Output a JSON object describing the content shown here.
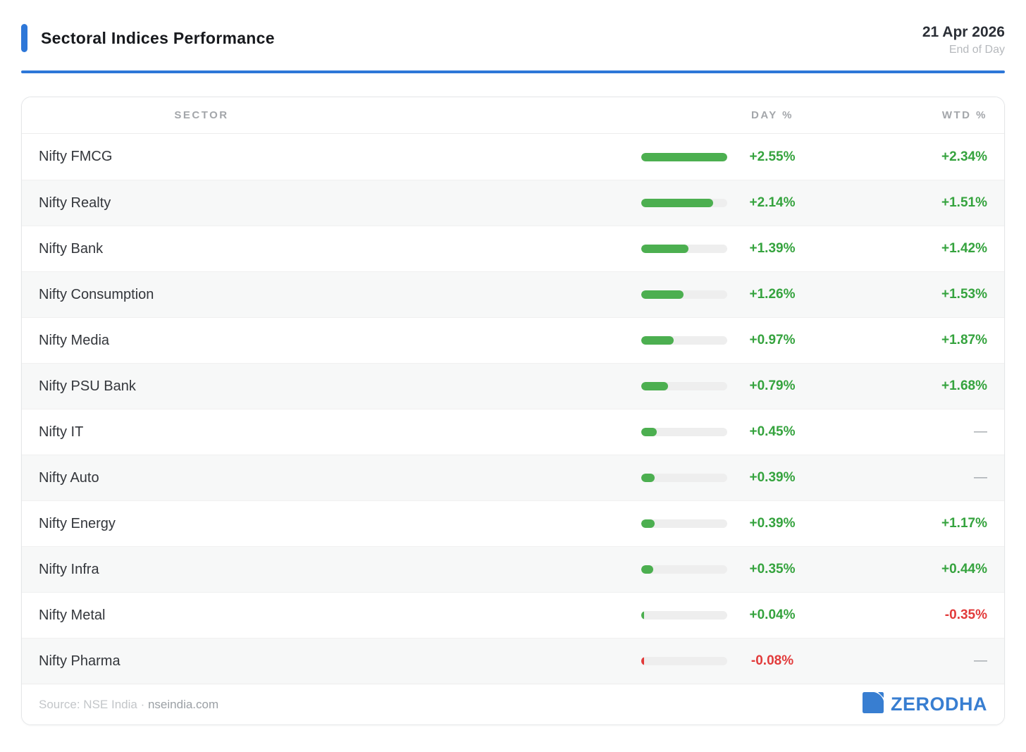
{
  "header": {
    "title": "Sectoral Indices Performance",
    "date": "21 Apr 2026",
    "subtitle": "End of Day"
  },
  "table": {
    "columns": {
      "sector": "SECTOR",
      "day": "DAY %",
      "wtd": "WTD %"
    },
    "rows": [
      {
        "sector": "Nifty FMCG",
        "day": "+2.55%",
        "wtd": "+2.34%"
      },
      {
        "sector": "Nifty Realty",
        "day": "+2.14%",
        "wtd": "+1.51%"
      },
      {
        "sector": "Nifty Bank",
        "day": "+1.39%",
        "wtd": "+1.42%"
      },
      {
        "sector": "Nifty Consumption",
        "day": "+1.26%",
        "wtd": "+1.53%"
      },
      {
        "sector": "Nifty Media",
        "day": "+0.97%",
        "wtd": "+1.87%"
      },
      {
        "sector": "Nifty PSU Bank",
        "day": "+0.79%",
        "wtd": "+1.68%"
      },
      {
        "sector": "Nifty IT",
        "day": "+0.45%",
        "wtd": "—"
      },
      {
        "sector": "Nifty Auto",
        "day": "+0.39%",
        "wtd": "—"
      },
      {
        "sector": "Nifty Energy",
        "day": "+0.39%",
        "wtd": "+1.17%"
      },
      {
        "sector": "Nifty Infra",
        "day": "+0.35%",
        "wtd": "+0.44%"
      },
      {
        "sector": "Nifty Metal",
        "day": "+0.04%",
        "wtd": "-0.35%"
      },
      {
        "sector": "Nifty Pharma",
        "day": "-0.08%",
        "wtd": "—"
      }
    ]
  },
  "chart_data": {
    "type": "bar",
    "orientation": "horizontal",
    "title": "Sectoral Indices Performance",
    "date": "21 Apr 2026",
    "period": "End of Day",
    "categories": [
      "Nifty FMCG",
      "Nifty Realty",
      "Nifty Bank",
      "Nifty Consumption",
      "Nifty Media",
      "Nifty PSU Bank",
      "Nifty IT",
      "Nifty Auto",
      "Nifty Energy",
      "Nifty Infra",
      "Nifty Metal",
      "Nifty Pharma"
    ],
    "series": [
      {
        "name": "Day %",
        "values": [
          2.55,
          2.14,
          1.39,
          1.26,
          0.97,
          0.79,
          0.45,
          0.39,
          0.39,
          0.35,
          0.04,
          -0.08
        ]
      },
      {
        "name": "WTD %",
        "values": [
          2.34,
          1.51,
          1.42,
          1.53,
          1.87,
          1.68,
          null,
          null,
          1.17,
          0.44,
          -0.35,
          null
        ]
      }
    ],
    "bar_scale_max": 2.55,
    "legend_position": "none",
    "grid": false
  },
  "footer": {
    "source_prefix": "Source: NSE India · ",
    "source_link": "nseindia.com",
    "brand": "ZERODHA"
  },
  "colors": {
    "accent_blue": "#2d77d8",
    "green_text": "#35a33e",
    "green_bar": "#4caf50",
    "red": "#e23b3b",
    "logo_blue": "#387ed1",
    "missing_dash": "#9aa0a6"
  },
  "icons": {
    "brand_mark": "zerodha-logo-icon"
  }
}
